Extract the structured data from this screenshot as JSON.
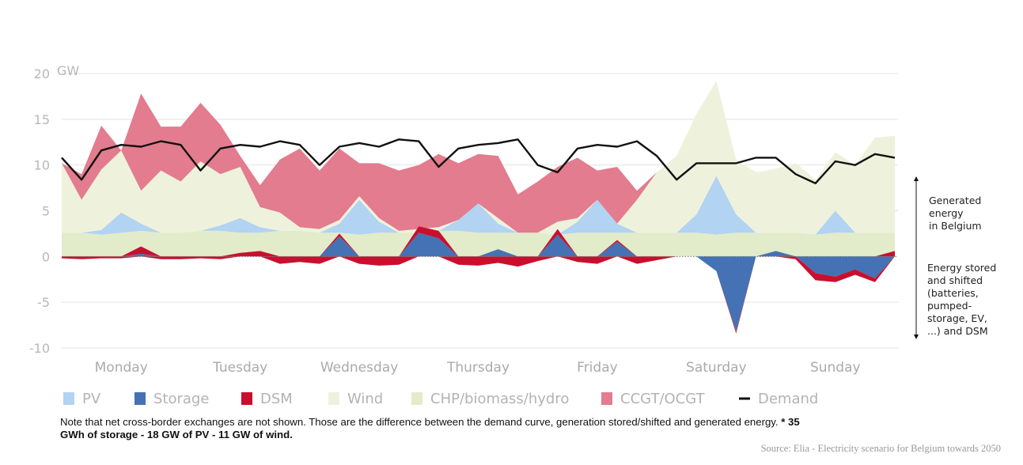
{
  "chart_data": {
    "type": "area",
    "ylabel_unit": "GW",
    "ylim": [
      -10,
      20
    ],
    "yticks": [
      20,
      15,
      10,
      5,
      0,
      -5,
      -10
    ],
    "grid": true,
    "days": [
      "Monday",
      "Tuesday",
      "Wednesday",
      "Thursday",
      "Friday",
      "Saturday",
      "Sunday"
    ],
    "x": [
      0,
      4,
      8,
      12,
      16,
      20,
      24,
      28,
      32,
      36,
      40,
      44,
      48,
      52,
      56,
      60,
      64,
      68,
      72,
      76,
      80,
      84,
      88,
      92,
      96,
      100,
      104,
      108,
      112,
      116,
      120,
      124,
      128,
      132,
      136,
      140,
      144,
      148,
      152,
      156,
      160,
      164,
      168
    ],
    "series": [
      {
        "name": "CHP/biomass/hydro",
        "color": "#e2ebca",
        "values": [
          2.6,
          2.6,
          2.4,
          2.6,
          2.8,
          2.6,
          2.6,
          2.8,
          2.8,
          2.6,
          2.6,
          2.8,
          2.8,
          2.6,
          2.6,
          2.4,
          2.6,
          2.6,
          2.6,
          2.8,
          2.8,
          2.6,
          2.6,
          2.6,
          2.6,
          2.4,
          2.6,
          2.6,
          2.6,
          2.6,
          2.6,
          2.6,
          2.6,
          2.4,
          2.6,
          2.6,
          2.6,
          2.6,
          2.4,
          2.6,
          2.6,
          2.6,
          2.6
        ]
      },
      {
        "name": "PV",
        "color": "#b2d3f1",
        "values": [
          0,
          0,
          0.5,
          2.2,
          0.8,
          0,
          0,
          0,
          0.6,
          1.6,
          0.6,
          0,
          0,
          0,
          1.0,
          3.8,
          1.2,
          0,
          0,
          0,
          1.2,
          3.2,
          1.0,
          0,
          0,
          0,
          1.2,
          3.6,
          1.0,
          0,
          0,
          0,
          2.0,
          6.4,
          2.0,
          0,
          0,
          0,
          0,
          2.4,
          0,
          0,
          0
        ]
      },
      {
        "name": "Wind",
        "color": "#eef2dc",
        "values": [
          7.6,
          3.6,
          6.6,
          6.8,
          3.6,
          6.8,
          5.6,
          7.6,
          5.6,
          5.6,
          2.2,
          2.0,
          0.4,
          0.4,
          0.4,
          0.4,
          0.4,
          0.2,
          0.4,
          0.4,
          0,
          0,
          0.6,
          0,
          0,
          1.4,
          0.4,
          0,
          0,
          3.6,
          6.6,
          8.4,
          11.0,
          10.4,
          6.0,
          6.6,
          7.0,
          7.6,
          6.0,
          6.4,
          7.4,
          10.4,
          10.6
        ]
      },
      {
        "name": "CCGT/OCGT",
        "color": "#e27c8e",
        "values": [
          0,
          2.8,
          4.8,
          0,
          10.6,
          4.8,
          6.0,
          6.4,
          5.4,
          1.2,
          2.4,
          5.8,
          8.6,
          6.4,
          7.8,
          3.6,
          6.0,
          6.6,
          7.0,
          8.0,
          6.2,
          5.4,
          6.8,
          4.2,
          5.6,
          6.0,
          6.6,
          3.2,
          6.2,
          1.0,
          0,
          0,
          0,
          0,
          0,
          0,
          0,
          0,
          0,
          0,
          0,
          0,
          0
        ]
      },
      {
        "name": "Storage",
        "color": "#4472b4",
        "values": [
          0,
          0,
          0,
          0,
          0.3,
          0,
          0,
          0,
          0,
          0,
          0,
          0,
          0,
          0,
          2.2,
          0,
          0,
          0,
          2.6,
          2.0,
          0,
          0,
          0.8,
          0,
          0,
          2.4,
          0,
          0,
          1.6,
          0,
          0,
          0,
          0,
          -1.6,
          -8.2,
          0,
          0.6,
          0,
          -1.8,
          -2.2,
          -1.4,
          -2.4,
          0
        ]
      },
      {
        "name": "DSM",
        "color": "#c8102e",
        "values": [
          -0.2,
          -0.3,
          -0.2,
          -0.2,
          0.8,
          -0.3,
          -0.3,
          -0.2,
          -0.3,
          0.4,
          0.6,
          -0.8,
          -0.6,
          -0.8,
          0.3,
          -0.8,
          -1.0,
          -0.9,
          0.7,
          0.8,
          -0.9,
          -1.0,
          -0.7,
          -1.1,
          -0.5,
          0.6,
          -0.6,
          -0.8,
          0.2,
          -0.8,
          -0.4,
          0,
          0,
          0,
          -0.2,
          0,
          0,
          -0.3,
          -0.8,
          -0.6,
          -0.6,
          -0.4,
          0.6
        ]
      },
      {
        "name": "Demand",
        "color": "#111111",
        "values": [
          10.8,
          8.4,
          11.6,
          12.2,
          12.0,
          12.6,
          12.2,
          9.4,
          11.8,
          12.2,
          12.0,
          12.6,
          12.2,
          10.0,
          12.0,
          12.4,
          12.0,
          12.8,
          12.6,
          9.8,
          11.8,
          12.2,
          12.4,
          12.8,
          10.0,
          9.2,
          11.8,
          12.2,
          12.0,
          12.6,
          11.0,
          8.4,
          10.2,
          10.2,
          10.2,
          10.8,
          10.8,
          9.0,
          8.0,
          10.4,
          10.0,
          11.2,
          10.8
        ]
      }
    ],
    "legend_order": [
      "PV",
      "Storage",
      "DSM",
      "Wind",
      "CHP/biomass/hydro",
      "CCGT/OCGT",
      "Demand"
    ],
    "legend_position": "bottom"
  },
  "annotations": {
    "generated": [
      "Generated",
      "energy",
      "in Belgium"
    ],
    "stored": [
      "Energy stored",
      "and shifted",
      "(batteries,",
      "pumped-",
      "storage, EV,",
      "...) and DSM"
    ]
  },
  "note": {
    "text": "Note that net cross-border exchanges are not shown. Those are the difference between the demand curve, generation stored/shifted and generated energy. ",
    "bold": "* 35 GWh of storage - 18 GW of PV - 11 GW of wind."
  },
  "source": "Source: Elia - Electricity scenario for Belgium towards 2050"
}
